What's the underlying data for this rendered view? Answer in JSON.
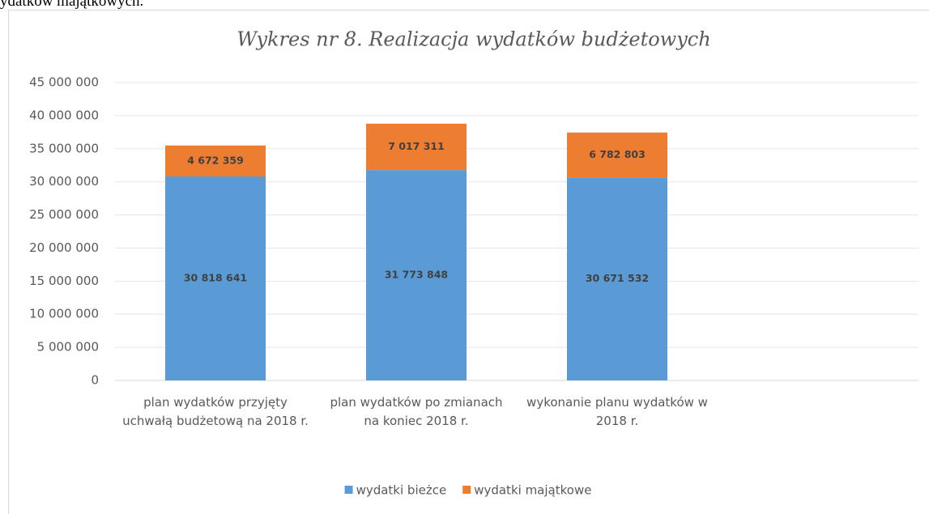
{
  "header_text": "ydatków majątkowych.",
  "chart_data": {
    "type": "stacked_bar",
    "title": "Wykres nr 8. Realizacja wydatków budżetowych",
    "categories": [
      "plan wydatków przyjęty uchwałą budżetową na 2018 r.",
      "plan wydatków po zmianach na koniec 2018 r.",
      "wykonanie planu wydatków w 2018 r.",
      null
    ],
    "series": [
      {
        "name": "wydatki bieżce",
        "color": "#5b9bd5",
        "values": [
          30818641,
          31773848,
          30671532,
          null
        ],
        "value_labels": [
          "30 818 641",
          "31 773 848",
          "30 671 532",
          null
        ]
      },
      {
        "name": "wydatki majątkowe",
        "color": "#ed7d31",
        "values": [
          4672359,
          7017311,
          6782803,
          null
        ],
        "value_labels": [
          "4 672 359",
          "7 017 311",
          "6 782 803",
          null
        ]
      }
    ],
    "ylim": [
      0,
      45000000
    ],
    "yticks": [
      0,
      {
        "value": 5000000,
        "label": "5 000 000"
      },
      {
        "value": 10000000,
        "label": "10 000 000"
      },
      {
        "value": 15000000,
        "label": "15 000 000"
      },
      {
        "value": 20000000,
        "label": "20 000 000"
      },
      {
        "value": 25000000,
        "label": "25 000 000"
      },
      {
        "value": 30000000,
        "label": "30 000 000"
      },
      {
        "value": 35000000,
        "label": "35 000 000"
      },
      {
        "value": 40000000,
        "label": "40 000 000"
      },
      {
        "value": 45000000,
        "label": "45 000 000"
      }
    ],
    "grid": true,
    "legend": "bottom"
  }
}
